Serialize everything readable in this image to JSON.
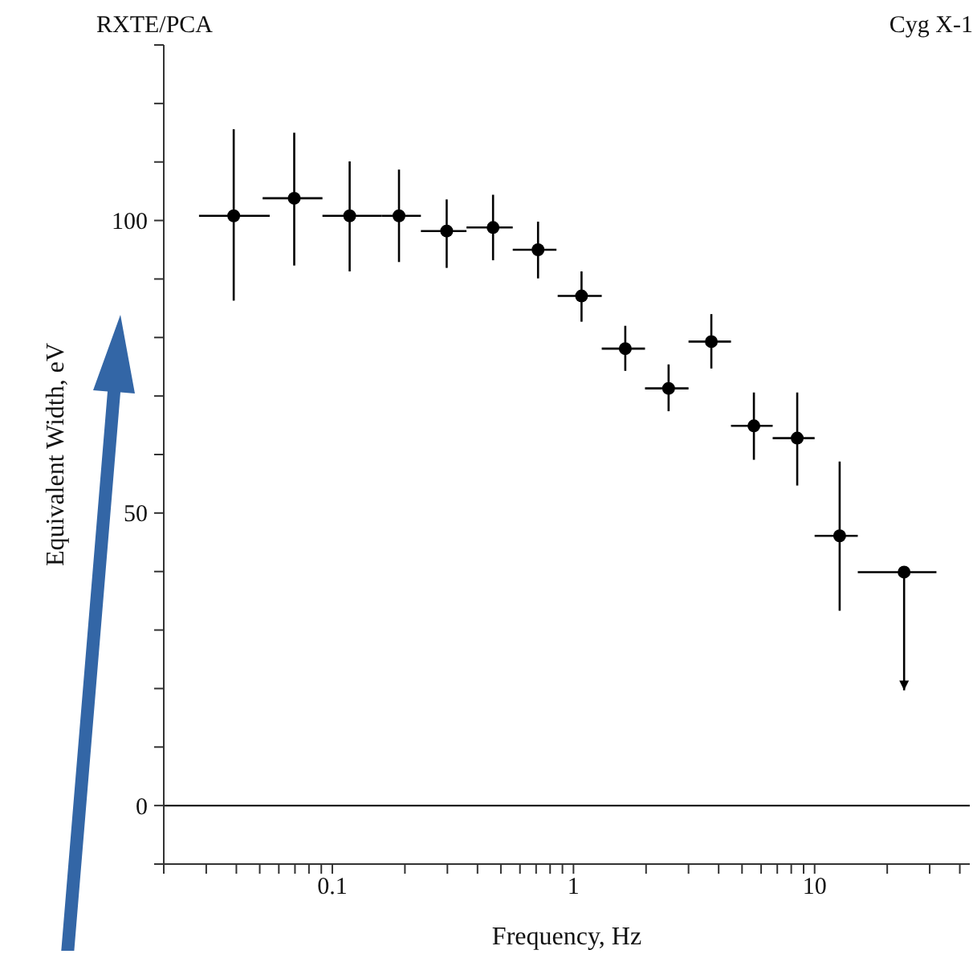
{
  "chart_data": {
    "type": "scatter",
    "xlabel": "Frequency, Hz",
    "ylabel": "Equivalent Width, eV",
    "annotations": [
      "RXTE/PCA",
      "Cyg X-1"
    ],
    "log": "x",
    "marker": "circle",
    "grid": false,
    "legend": false,
    "xlim": [
      0.02,
      44
    ],
    "ylim": [
      -10,
      130
    ],
    "xticks": [
      {
        "value": 0.02,
        "label": null
      },
      {
        "value": 0.03,
        "label": null
      },
      {
        "value": 0.04,
        "label": null
      },
      {
        "value": 0.05,
        "label": null
      },
      {
        "value": 0.06,
        "label": null
      },
      {
        "value": 0.07,
        "label": null
      },
      {
        "value": 0.08,
        "label": null
      },
      {
        "value": 0.09,
        "label": null
      },
      0.1,
      {
        "value": 0.2,
        "label": null
      },
      {
        "value": 0.3,
        "label": null
      },
      {
        "value": 0.4,
        "label": null
      },
      {
        "value": 0.5,
        "label": null
      },
      {
        "value": 0.6,
        "label": null
      },
      {
        "value": 0.7,
        "label": null
      },
      {
        "value": 0.8,
        "label": null
      },
      {
        "value": 0.9,
        "label": null
      },
      1,
      {
        "value": 2,
        "label": null
      },
      {
        "value": 3,
        "label": null
      },
      {
        "value": 4,
        "label": null
      },
      {
        "value": 5,
        "label": null
      },
      {
        "value": 6,
        "label": null
      },
      {
        "value": 7,
        "label": null
      },
      {
        "value": 8,
        "label": null
      },
      {
        "value": 9,
        "label": null
      },
      10,
      {
        "value": 20,
        "label": null
      },
      {
        "value": 30,
        "label": null
      },
      {
        "value": 40,
        "label": null
      }
    ],
    "yticks": [
      {
        "value": -10,
        "label": null
      },
      0,
      {
        "value": 10,
        "label": null
      },
      {
        "value": 20,
        "label": null
      },
      {
        "value": 30,
        "label": null
      },
      {
        "value": 40,
        "label": null
      },
      50,
      {
        "value": 60,
        "label": null
      },
      {
        "value": 70,
        "label": null
      },
      {
        "value": 80,
        "label": null
      },
      {
        "value": 90,
        "label": null
      },
      100,
      {
        "value": 110,
        "label": null
      },
      {
        "value": 120,
        "label": null
      },
      {
        "value": 130,
        "label": null
      }
    ],
    "ref_lines": [
      {
        "axis": "y",
        "value": 0,
        "color": "#000000"
      }
    ],
    "series": [
      {
        "color": "#000000",
        "x": [
          0.039,
          0.0695,
          0.118,
          0.189,
          0.298,
          0.464,
          0.713,
          1.08,
          1.64,
          2.48,
          3.73,
          5.6,
          8.47,
          12.7,
          23.5
        ],
        "values": [
          100.8,
          103.8,
          100.8,
          100.8,
          98.2,
          98.8,
          95.0,
          87.1,
          78.1,
          71.3,
          79.3,
          64.9,
          62.8,
          46.1,
          39.9
        ],
        "errors": [
          [
            86.3,
            115.6
          ],
          [
            92.3,
            115
          ],
          [
            91.3,
            110.1
          ],
          [
            92.9,
            108.7
          ],
          [
            91.9,
            103.6
          ],
          [
            93.2,
            104.4
          ],
          [
            90.1,
            99.8
          ],
          [
            82.7,
            91.3
          ],
          [
            74.3,
            82.0
          ],
          [
            67.4,
            75.4
          ],
          [
            74.7,
            84.0
          ],
          [
            59.1,
            70.6
          ],
          [
            54.7,
            70.6
          ],
          [
            33.3,
            58.8
          ],
          [
            19.7,
            39.9
          ]
        ],
        "xerrors": [
          [
            0.028,
            0.055
          ],
          [
            0.0514,
            0.091
          ],
          [
            0.091,
            0.16
          ],
          [
            0.16,
            0.233
          ],
          [
            0.233,
            0.36
          ],
          [
            0.36,
            0.56
          ],
          [
            0.56,
            0.85
          ],
          [
            0.86,
            1.31
          ],
          [
            1.31,
            1.98
          ],
          [
            1.98,
            3.0
          ],
          [
            3.0,
            4.5
          ],
          [
            4.5,
            6.7
          ],
          [
            6.7,
            10
          ],
          [
            10,
            15.1
          ],
          [
            15.1,
            32
          ]
        ]
      }
    ]
  }
}
